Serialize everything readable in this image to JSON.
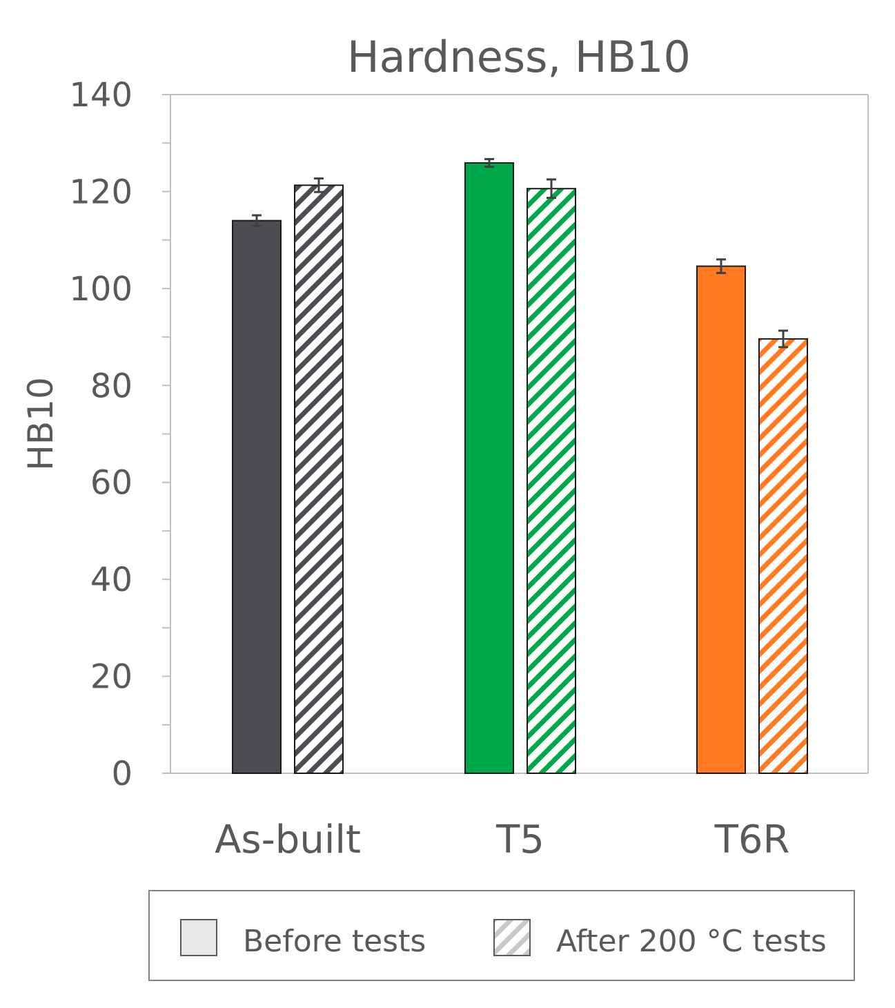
{
  "chart_data": {
    "type": "bar",
    "title": "Hardness, HB10",
    "xlabel": "",
    "ylabel": "HB10",
    "ylim": [
      0,
      140
    ],
    "yticks": [
      0,
      20,
      40,
      60,
      80,
      100,
      120,
      140
    ],
    "ytick_labels": [
      "0",
      "20",
      "40",
      "60",
      "80",
      "100",
      "120",
      "140"
    ],
    "minor_ytick_step": 10,
    "grid": false,
    "categories": [
      "As-built",
      "T5",
      "T6R"
    ],
    "category_colors": [
      "#4d4c52",
      "#00a84a",
      "#ff7a20"
    ],
    "series": [
      {
        "name": "Before tests",
        "pattern": "solid",
        "values": [
          114,
          125.9,
          104.6
        ],
        "errors": [
          1.1,
          0.8,
          1.4
        ]
      },
      {
        "name": "After 200 °C tests",
        "pattern": "hatched",
        "values": [
          121.3,
          120.6,
          89.6
        ],
        "errors": [
          1.4,
          1.9,
          1.7
        ]
      }
    ],
    "legend_position": "bottom"
  },
  "colors": {
    "text": "#595959",
    "axis": "#bfbfbf",
    "error_bar": "#404040",
    "legend_swatch": "#e8e8e8"
  }
}
